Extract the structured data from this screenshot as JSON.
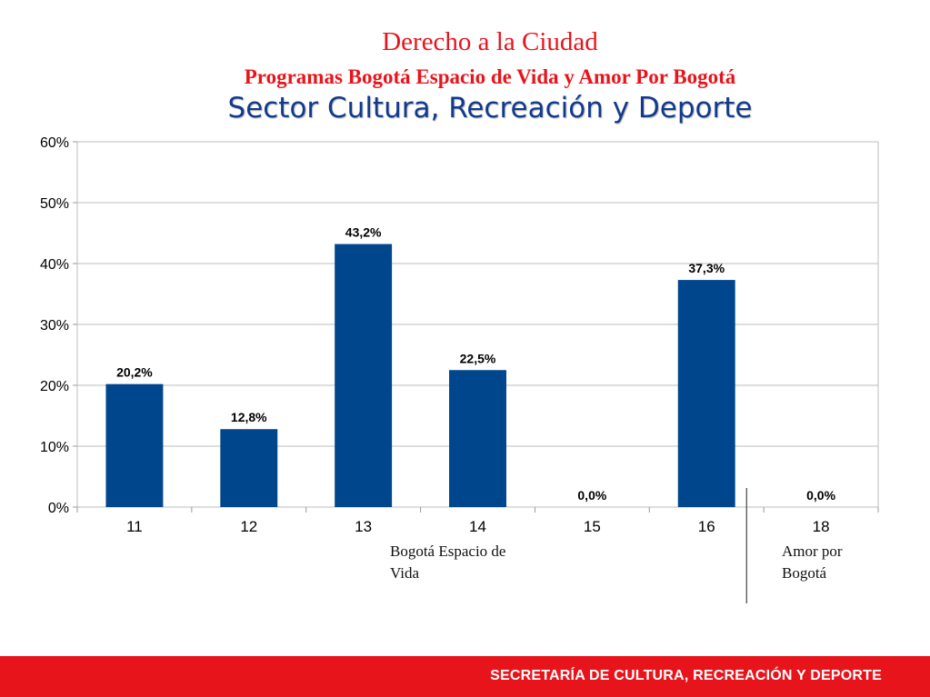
{
  "header": {
    "title": "Derecho a la Ciudad",
    "subtitle": "Programas Bogotá Espacio de Vida y Amor Por Bogotá",
    "sector": "Sector Cultura, Recreación y Deporte"
  },
  "chart_data": {
    "type": "bar",
    "categories": [
      "11",
      "12",
      "13",
      "14",
      "15",
      "16",
      "18"
    ],
    "values": [
      20.2,
      12.8,
      43.2,
      22.5,
      0.0,
      37.3,
      0.0
    ],
    "value_labels": [
      "20,2%",
      "12,8%",
      "43,2%",
      "22,5%",
      "0,0%",
      "37,3%",
      "0,0%"
    ],
    "yticks": [
      "0%",
      "10%",
      "20%",
      "30%",
      "40%",
      "50%",
      "60%"
    ],
    "ylim": [
      0,
      60
    ],
    "grid": true,
    "bar_color": "#00468c",
    "groups": [
      {
        "label": "Bogotá Espacio de Vida"
      },
      {
        "label": "Amor por Bogotá"
      }
    ]
  },
  "footer": {
    "text": "SECRETARÍA DE CULTURA, RECREACIÓN Y DEPORTE",
    "color": "#e8141b"
  }
}
